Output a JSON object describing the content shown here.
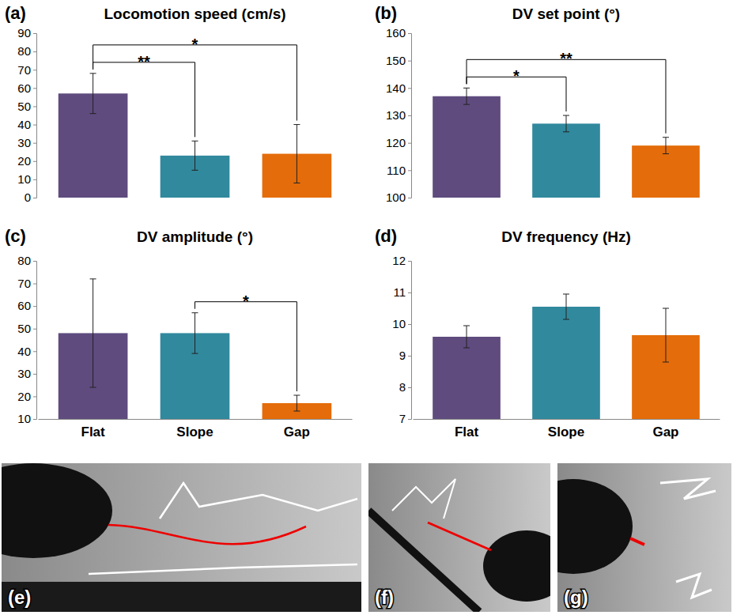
{
  "chart_data": [
    {
      "type": "bar",
      "label": "(a)",
      "title": "Locomotion speed (cm/s)",
      "categories": [
        "Flat",
        "Slope",
        "Gap"
      ],
      "values": [
        57,
        23,
        24
      ],
      "errors": [
        11,
        8,
        16
      ],
      "colors": [
        "#5f4b7e",
        "#31899d",
        "#e46c0a"
      ],
      "ylim": [
        0,
        90
      ],
      "yticks": [
        0,
        10,
        20,
        30,
        40,
        50,
        60,
        70,
        80,
        90
      ],
      "tick_labels": "y",
      "significance": [
        {
          "from": 0,
          "to": 1,
          "label": "**"
        },
        {
          "from": 0,
          "to": 2,
          "label": "*"
        }
      ]
    },
    {
      "type": "bar",
      "label": "(b)",
      "title": "DV set point (°)",
      "categories": [
        "Flat",
        "Slope",
        "Gap"
      ],
      "values": [
        137,
        127,
        119
      ],
      "errors": [
        3,
        3,
        3
      ],
      "colors": [
        "#5f4b7e",
        "#31899d",
        "#e46c0a"
      ],
      "ylim": [
        100,
        160
      ],
      "yticks": [
        100,
        110,
        120,
        130,
        140,
        150,
        160
      ],
      "tick_labels": "y",
      "significance": [
        {
          "from": 0,
          "to": 1,
          "label": "*"
        },
        {
          "from": 0,
          "to": 2,
          "label": "**"
        }
      ]
    },
    {
      "type": "bar",
      "label": "(c)",
      "title": "DV amplitude (°)",
      "categories": [
        "Flat",
        "Slope",
        "Gap"
      ],
      "values": [
        48,
        48,
        17
      ],
      "errors": [
        24,
        9,
        3.5
      ],
      "colors": [
        "#5f4b7e",
        "#31899d",
        "#e46c0a"
      ],
      "ylim": [
        10,
        80
      ],
      "yticks": [
        10,
        20,
        30,
        40,
        50,
        60,
        70,
        80
      ],
      "significance": [
        {
          "from": 1,
          "to": 2,
          "label": "*"
        }
      ]
    },
    {
      "type": "bar",
      "label": "(d)",
      "title": "DV frequency (Hz)",
      "categories": [
        "Flat",
        "Slope",
        "Gap"
      ],
      "values": [
        9.6,
        10.55,
        9.65
      ],
      "errors": [
        0.35,
        0.4,
        0.85
      ],
      "colors": [
        "#5f4b7e",
        "#31899d",
        "#e46c0a"
      ],
      "ylim": [
        7,
        12
      ],
      "yticks": [
        7,
        8,
        9,
        10,
        11,
        12
      ],
      "significance": []
    }
  ],
  "photos": [
    {
      "label": "(e)"
    },
    {
      "label": "(f)"
    },
    {
      "label": "(g)"
    }
  ]
}
